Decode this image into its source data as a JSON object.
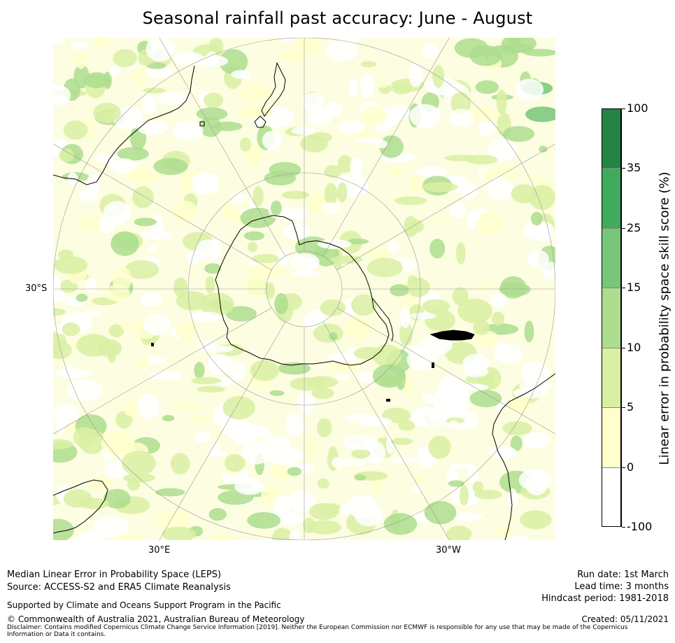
{
  "title": "Seasonal rainfall past accuracy: June - August",
  "map": {
    "projection": "South polar stereographic",
    "labels": {
      "left": "30°S",
      "bottom_left": "30°E",
      "bottom_right": "30°W"
    },
    "colors": {
      "land_outline": "#000000",
      "graticule": "#999999"
    }
  },
  "colorbar": {
    "title": "Linear error in probability space skill score (%)",
    "ticks": [
      "100",
      "35",
      "25",
      "15",
      "10",
      "5",
      "0",
      "-100"
    ],
    "bins": [
      {
        "from": -100,
        "to": 0,
        "color": "#ffffff"
      },
      {
        "from": 0,
        "to": 5,
        "color": "#ffffcc"
      },
      {
        "from": 5,
        "to": 10,
        "color": "#d9f0a3"
      },
      {
        "from": 10,
        "to": 15,
        "color": "#addd8e"
      },
      {
        "from": 15,
        "to": 25,
        "color": "#78c679"
      },
      {
        "from": 25,
        "to": 35,
        "color": "#41ab5d"
      },
      {
        "from": 35,
        "to": 100,
        "color": "#238443"
      }
    ]
  },
  "footer": {
    "line1": "Median Linear Error in Probability Space (LEPS)",
    "line2": "Source: ACCESS-S2 and ERA5 Climate Reanalysis",
    "supported": "Supported by Climate and Oceans Support Program in the Pacific",
    "copyright": "© Commonwealth of Australia 2021, Australian Bureau of Meteorology",
    "disclaimer": "Disclaimer: Contains modified Copernicus Climate Change Service Information [2019]. Neither the European Commission nor ECMWF is responsible for any use that may be made of the Copernicus Information or Data it contains.",
    "run_date": "Run date: 1st March",
    "lead_time": "Lead time: 3 months",
    "hindcast": "Hindcast period: 1981-2018",
    "created": "Created: 05/11/2021"
  }
}
